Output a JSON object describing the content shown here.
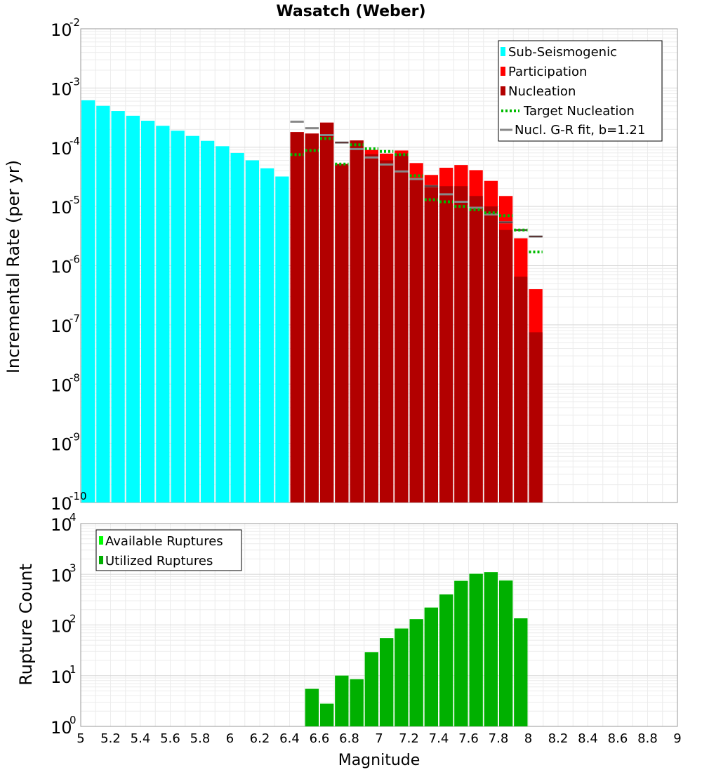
{
  "chart_data": [
    {
      "type": "bar",
      "title": "Wasatch (Weber)",
      "xlabel": "Magnitude",
      "ylabel": "Incremental Rate (per yr)",
      "yscale": "log",
      "xlim": [
        5,
        9
      ],
      "ylim_exponents": [
        -10,
        -2
      ],
      "ytick_base": "10",
      "ytick_exponents": [
        "-10",
        "-9",
        "-8",
        "-7",
        "-6",
        "-5",
        "-4",
        "-3",
        "-2"
      ],
      "legend": {
        "position": "top-right",
        "entries": [
          {
            "label": "Sub-Seismogenic",
            "color": "#00ffff",
            "style": "bar"
          },
          {
            "label": "Participation",
            "color": "#ff0000",
            "style": "bar"
          },
          {
            "label": "Nucleation",
            "color": "#b20000",
            "style": "bar"
          },
          {
            "label": "Target Nucleation",
            "color": "#00bb00",
            "style": "dotted-line"
          },
          {
            "label": "Nucl. G-R fit, b=1.21",
            "color": "#888888",
            "style": "line"
          }
        ]
      },
      "series": [
        {
          "name": "Sub-Seismogenic",
          "color": "#00ffff",
          "x": [
            5.05,
            5.15,
            5.25,
            5.35,
            5.45,
            5.55,
            5.65,
            5.75,
            5.85,
            5.95,
            6.05,
            6.15,
            6.25,
            6.35
          ],
          "values": [
            0.00062,
            0.0005,
            0.00041,
            0.00034,
            0.00028,
            0.00023,
            0.00019,
            0.000155,
            0.000128,
            0.000104,
            8e-05,
            6e-05,
            4.4e-05,
            3.2e-05
          ]
        },
        {
          "name": "Participation",
          "color": "#ff0000",
          "x": [
            6.45,
            6.55,
            6.65,
            6.75,
            6.85,
            6.95,
            7.05,
            7.15,
            7.25,
            7.35,
            7.45,
            7.55,
            7.65,
            7.75,
            7.85,
            7.95,
            8.05
          ],
          "values": [
            0.00018,
            0.00017,
            0.00026,
            5.2e-05,
            0.00013,
            9e-05,
            7.8e-05,
            8.8e-05,
            5.4e-05,
            3.4e-05,
            4.5e-05,
            5e-05,
            4.1e-05,
            2.7e-05,
            1.5e-05,
            2.9e-06,
            4e-07
          ]
        },
        {
          "name": "Nucleation",
          "color": "#b20000",
          "x": [
            6.45,
            6.55,
            6.65,
            6.75,
            6.85,
            6.95,
            7.05,
            7.15,
            7.25,
            7.35,
            7.45,
            7.55,
            7.65,
            7.75,
            7.85,
            7.95,
            8.05
          ],
          "values": [
            0.00018,
            0.00017,
            0.00026,
            5.2e-05,
            0.00013,
            7.6e-05,
            6e-05,
            7.8e-05,
            2.9e-05,
            2.1e-05,
            2.2e-05,
            2.2e-05,
            1.5e-05,
            1e-05,
            4e-06,
            6.5e-07,
            7.5e-08
          ]
        },
        {
          "name": "Target Nucleation",
          "color": "#00bb00",
          "x": [
            6.45,
            6.55,
            6.65,
            6.75,
            6.85,
            6.95,
            7.05,
            7.15,
            7.25,
            7.35,
            7.45,
            7.55,
            7.65,
            7.75,
            7.85,
            7.95,
            8.05
          ],
          "values": [
            7.5e-05,
            8.8e-05,
            0.00014,
            5.2e-05,
            0.00011,
            9.4e-05,
            8.5e-05,
            7.5e-05,
            3.3e-05,
            1.3e-05,
            1.2e-05,
            1e-05,
            8.8e-06,
            7.8e-06,
            7e-06,
            4e-06,
            1.7e-06
          ]
        },
        {
          "name": "Nucl. G-R fit, b=1.21",
          "color": "#888888",
          "x": [
            6.45,
            6.55,
            6.65,
            6.75,
            6.85,
            6.95,
            7.05,
            7.15,
            7.25,
            7.35,
            7.45,
            7.55,
            7.65,
            7.75,
            7.85,
            7.95,
            8.05
          ],
          "values": [
            0.00027,
            0.00021,
            0.00016,
            0.00012,
            9.3e-05,
            6.7e-05,
            5.1e-05,
            3.9e-05,
            2.9e-05,
            2.2e-05,
            1.6e-05,
            1.2e-05,
            9.5e-06,
            7.3e-06,
            5.4e-06,
            4e-06,
            3.1e-06
          ]
        }
      ]
    },
    {
      "type": "bar",
      "xlabel": "Magnitude",
      "ylabel": "Rupture Count",
      "yscale": "log",
      "xlim": [
        5,
        9
      ],
      "ylim_exponents": [
        0,
        4
      ],
      "ytick_base": "10",
      "ytick_exponents": [
        "0",
        "1",
        "2",
        "3",
        "4"
      ],
      "xticks": [
        "5",
        "5.2",
        "5.4",
        "5.6",
        "5.8",
        "6",
        "6.2",
        "6.4",
        "6.6",
        "6.8",
        "7",
        "7.2",
        "7.4",
        "7.6",
        "7.8",
        "8",
        "8.2",
        "8.4",
        "8.6",
        "8.8",
        "9"
      ],
      "legend": {
        "position": "top-left",
        "entries": [
          {
            "label": "Available Ruptures",
            "color": "#00ff00",
            "style": "bar"
          },
          {
            "label": "Utilized Ruptures",
            "color": "#00b000",
            "style": "bar"
          }
        ]
      },
      "series": [
        {
          "name": "Available Ruptures",
          "color": "#00ff00",
          "x": [
            6.55,
            6.65,
            6.75,
            6.85,
            6.95,
            7.05,
            7.15,
            7.25,
            7.35,
            7.45,
            7.55,
            7.65,
            7.75,
            7.85,
            7.95
          ],
          "values": [
            5.5,
            2.8,
            10,
            8.5,
            29,
            55,
            85,
            130,
            220,
            400,
            740,
            1020,
            1100,
            750,
            135
          ]
        },
        {
          "name": "Utilized Ruptures",
          "color": "#00b000",
          "x": [
            6.55,
            6.65,
            6.75,
            6.85,
            6.95,
            7.05,
            7.15,
            7.25,
            7.35,
            7.45,
            7.55,
            7.65,
            7.75,
            7.85,
            7.95
          ],
          "values": [
            5.5,
            2.8,
            10,
            8.5,
            29,
            55,
            85,
            130,
            220,
            400,
            740,
            1020,
            1100,
            750,
            135
          ]
        }
      ]
    }
  ]
}
